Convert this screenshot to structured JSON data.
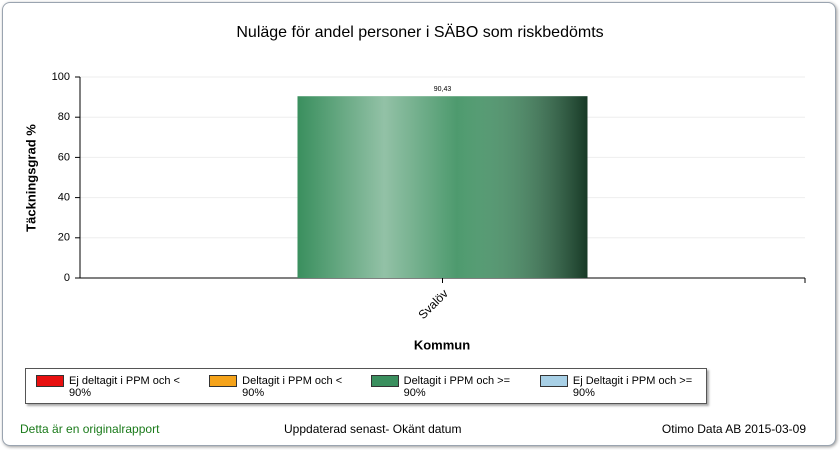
{
  "chart_data": {
    "type": "bar",
    "title": "Nuläge för andel personer i SÄBO som riskbedömts",
    "ylabel": "Täckningsgrad %",
    "xlabel": "Kommun",
    "categories": [
      "Svalöv"
    ],
    "values": [
      90.43
    ],
    "value_labels": [
      "90,43"
    ],
    "color": "#3a8f5e",
    "ylim": [
      0,
      100
    ],
    "yticks": [
      0,
      20,
      40,
      60,
      80,
      100
    ],
    "grid": true,
    "legend": [
      {
        "name": "Ej deltagit i PPM och < 90%",
        "color": "#e81010"
      },
      {
        "name": "Deltagit i PPM och < 90%",
        "color": "#f5a31a"
      },
      {
        "name": "Deltagit i PPM och >= 90%",
        "color": "#3a8f5e"
      },
      {
        "name": "Ej Deltagit i PPM och >= 90%",
        "color": "#a8d0e6"
      }
    ]
  },
  "footer": {
    "left": "Detta är en originalrapport",
    "center": "Uppdaterad senast- Okänt datum",
    "right": "Otimo Data AB 2015-03-09"
  }
}
